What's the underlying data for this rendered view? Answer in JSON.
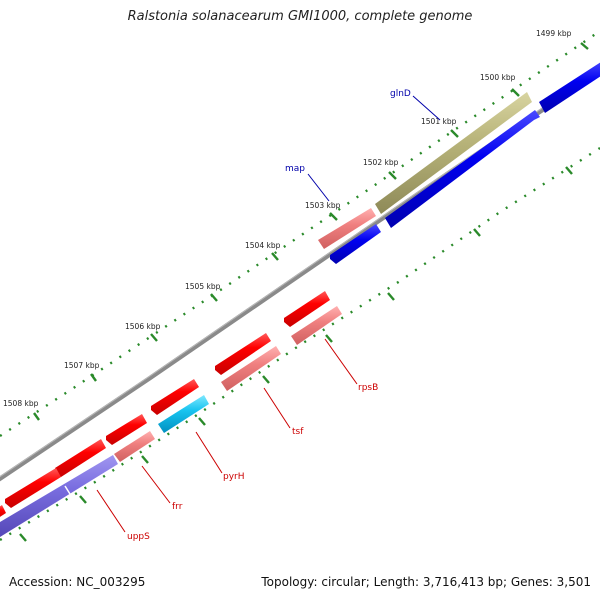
{
  "title": "Ralstonia solanacearum GMI1000, complete genome",
  "accession": "Accession: NC_003295",
  "summary": "Topology: circular; Length: 3,716,413 bp; Genes: 3,501",
  "colors": {
    "background": "#ffffff",
    "backbone": "#808080",
    "tick": "#2a8a2a",
    "forward_label": "#0000aa",
    "reverse_label": "#cc0000"
  },
  "scale": {
    "labels": [
      "1499 kbp",
      "1500 kbp",
      "1501 kbp",
      "1502 kbp",
      "1503 kbp",
      "1504 kbp",
      "1505 kbp",
      "1506 kbp",
      "1507 kbp",
      "1508 kbp"
    ]
  },
  "genes": {
    "glnD": "glnD",
    "map": "map",
    "rpsB": "rpsB",
    "tsf": "tsf",
    "pyrH": "pyrH",
    "frr": "frr",
    "uppS": "uppS"
  }
}
